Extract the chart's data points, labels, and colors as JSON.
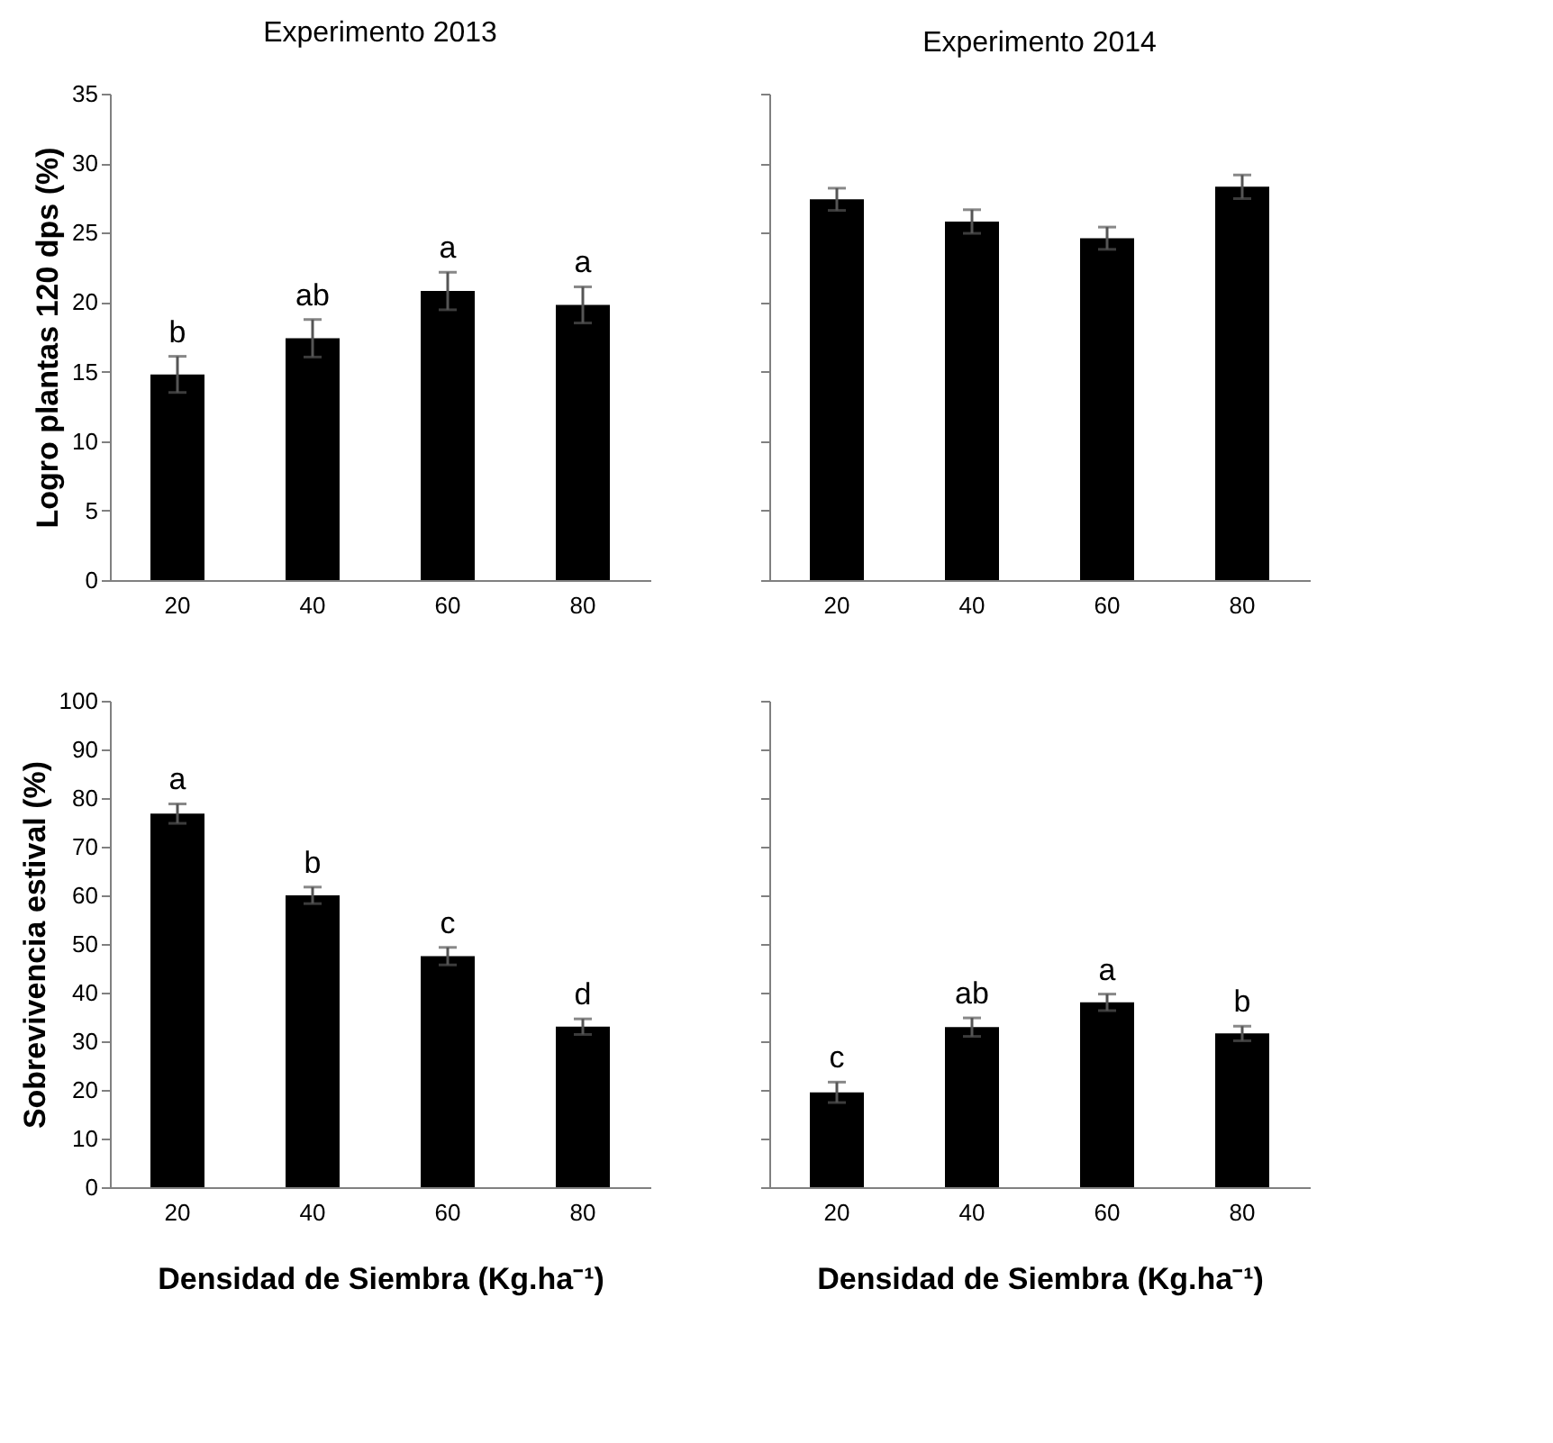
{
  "chart_data": [
    {
      "type": "bar",
      "title": "Experimento 2013",
      "ylabel": "Logro plantas 120 dps (%)",
      "categories": [
        "20",
        "40",
        "60",
        "80"
      ],
      "values": [
        14.8,
        17.4,
        20.8,
        19.8
      ],
      "errors": [
        1.3,
        1.35,
        1.35,
        1.3
      ],
      "value_labels": [
        "b",
        "ab",
        "a",
        "a"
      ],
      "color": "#000000",
      "ylim": [
        0,
        35
      ],
      "yticks": [
        0,
        5,
        10,
        15,
        20,
        25,
        30,
        35
      ],
      "grid": false
    },
    {
      "type": "bar",
      "title": "Experimento 2014",
      "categories": [
        "20",
        "40",
        "60",
        "80"
      ],
      "values": [
        27.4,
        25.8,
        24.6,
        28.3
      ],
      "errors": [
        0.8,
        0.85,
        0.8,
        0.85
      ],
      "color": "#000000",
      "ylim": [
        0,
        35
      ],
      "yticks": [
        0,
        5,
        10,
        15,
        20,
        25,
        30,
        35
      ],
      "tick_labels": "x",
      "grid": false
    },
    {
      "type": "bar",
      "ylabel": "Sobrevivencia estival (%)",
      "xlabel": "Densidad de Siembra (Kg.ha⁻¹)",
      "categories": [
        "20",
        "40",
        "60",
        "80"
      ],
      "values": [
        76.8,
        60,
        47.5,
        33
      ],
      "errors": [
        2,
        1.7,
        1.8,
        1.6
      ],
      "value_labels": [
        "a",
        "b",
        "c",
        "d"
      ],
      "color": "#000000",
      "ylim": [
        0,
        100
      ],
      "yticks": [
        0,
        10,
        20,
        30,
        40,
        50,
        60,
        70,
        80,
        90,
        100
      ],
      "grid": false
    },
    {
      "type": "bar",
      "xlabel": "Densidad de Siembra (Kg.ha⁻¹)",
      "categories": [
        "20",
        "40",
        "60",
        "80"
      ],
      "values": [
        19.5,
        32.9,
        38,
        31.6
      ],
      "errors": [
        2.1,
        1.9,
        1.7,
        1.5
      ],
      "value_labels": [
        "c",
        "ab",
        "a",
        "b"
      ],
      "color": "#000000",
      "ylim": [
        0,
        100
      ],
      "yticks": [
        0,
        10,
        20,
        30,
        40,
        50,
        60,
        70,
        80,
        90,
        100
      ],
      "tick_labels": "x",
      "grid": false
    }
  ]
}
